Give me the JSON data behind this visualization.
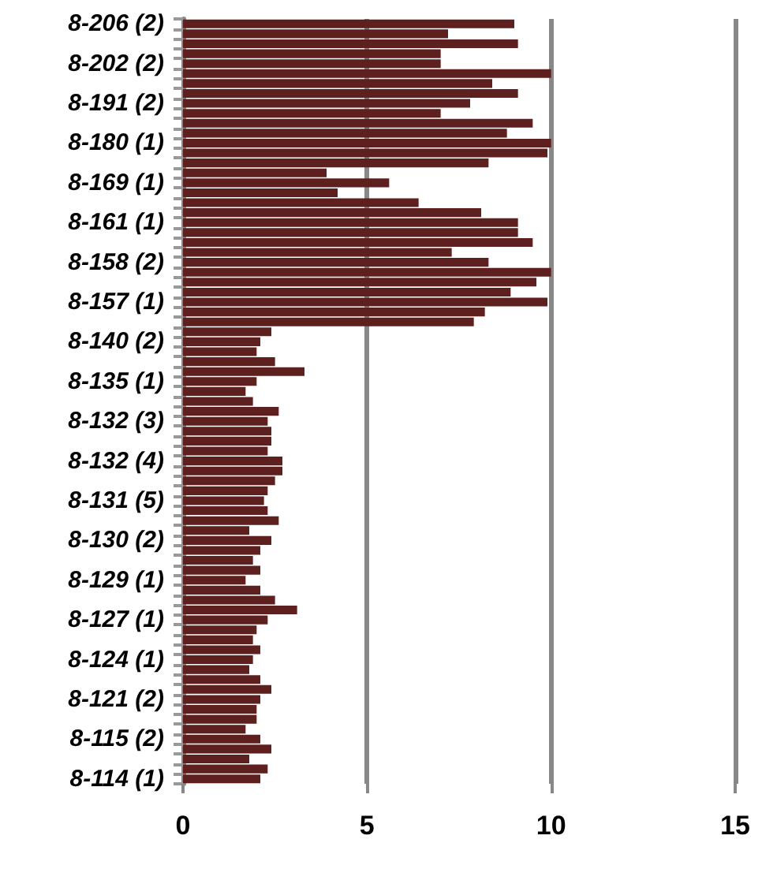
{
  "chart_data": {
    "type": "bar",
    "orientation": "horizontal",
    "categories": [
      "8-206 (2)",
      null,
      null,
      null,
      "8-202 (2)",
      null,
      null,
      null,
      "8-191 (2)",
      null,
      null,
      null,
      "8-180 (1)",
      null,
      null,
      null,
      "8-169 (1)",
      null,
      null,
      null,
      "8-161 (1)",
      null,
      null,
      null,
      "8-158 (2)",
      null,
      null,
      null,
      "8-157 (1)",
      null,
      null,
      null,
      "8-140 (2)",
      null,
      null,
      null,
      "8-135 (1)",
      null,
      null,
      null,
      "8-132 (3)",
      null,
      null,
      null,
      "8-132 (4)",
      null,
      null,
      null,
      "8-131 (5)",
      null,
      null,
      null,
      "8-130 (2)",
      null,
      null,
      null,
      "8-129 (1)",
      null,
      null,
      null,
      "8-127 (1)",
      null,
      null,
      null,
      "8-124 (1)",
      null,
      null,
      null,
      "8-121 (2)",
      null,
      null,
      null,
      "8-115 (2)",
      null,
      null,
      null,
      "8-114 (1)"
    ],
    "values": [
      9.0,
      7.2,
      9.1,
      7.0,
      7.0,
      10.0,
      8.4,
      9.1,
      7.8,
      7.0,
      9.5,
      8.8,
      10.0,
      9.9,
      8.3,
      3.9,
      5.6,
      4.2,
      6.4,
      8.1,
      9.1,
      9.1,
      9.5,
      7.3,
      8.3,
      10.0,
      9.6,
      8.9,
      9.9,
      8.2,
      7.9,
      2.4,
      2.1,
      2.0,
      2.5,
      3.3,
      2.0,
      1.7,
      1.9,
      2.6,
      2.3,
      2.4,
      2.4,
      2.3,
      2.7,
      2.7,
      2.5,
      2.3,
      2.2,
      2.3,
      2.6,
      1.8,
      2.4,
      2.1,
      1.9,
      2.1,
      1.7,
      2.1,
      2.5,
      3.1,
      2.3,
      2.0,
      1.9,
      2.1,
      1.9,
      1.8,
      2.1,
      2.4,
      2.1,
      2.0,
      2.0,
      1.7,
      2.1,
      2.4,
      1.8,
      2.3,
      2.1
    ],
    "color": "#5e1f1f",
    "xlim": [
      0,
      15
    ],
    "xticks": [
      0,
      5,
      10,
      15
    ],
    "grid": "x"
  }
}
